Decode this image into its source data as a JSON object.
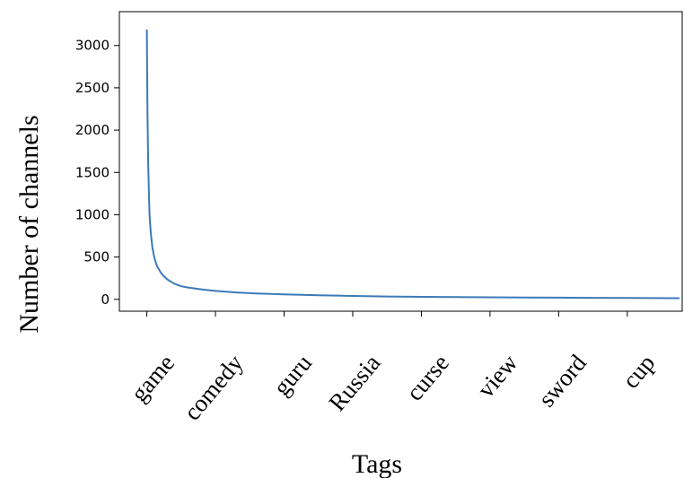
{
  "chart_data": {
    "type": "line",
    "title": "",
    "xlabel": "Tags",
    "ylabel": "Number of channels",
    "categories": [
      "game",
      "comedy",
      "guru",
      "Russia",
      "curse",
      "view",
      "sword",
      "cup"
    ],
    "category_positions": [
      0,
      100,
      200,
      300,
      400,
      500,
      600,
      700
    ],
    "xlim": [
      -40,
      780
    ],
    "ylim": [
      -140,
      3400
    ],
    "yticks": [
      0,
      500,
      1000,
      1500,
      2000,
      2500,
      3000
    ],
    "grid": false,
    "series": [
      {
        "color": "#3b7ab8",
        "x": [
          0,
          1,
          2,
          3,
          4,
          5,
          6,
          8,
          10,
          12,
          15,
          20,
          25,
          30,
          40,
          50,
          60,
          80,
          100,
          130,
          160,
          200,
          250,
          300,
          350,
          400,
          450,
          500,
          550,
          600,
          650,
          700,
          775
        ],
        "y": [
          3180,
          2200,
          1600,
          1250,
          1000,
          870,
          760,
          620,
          530,
          460,
          390,
          320,
          270,
          235,
          185,
          155,
          140,
          118,
          100,
          82,
          70,
          58,
          48,
          40,
          34,
          30,
          27,
          24,
          22,
          20,
          18,
          16,
          14
        ]
      }
    ]
  }
}
